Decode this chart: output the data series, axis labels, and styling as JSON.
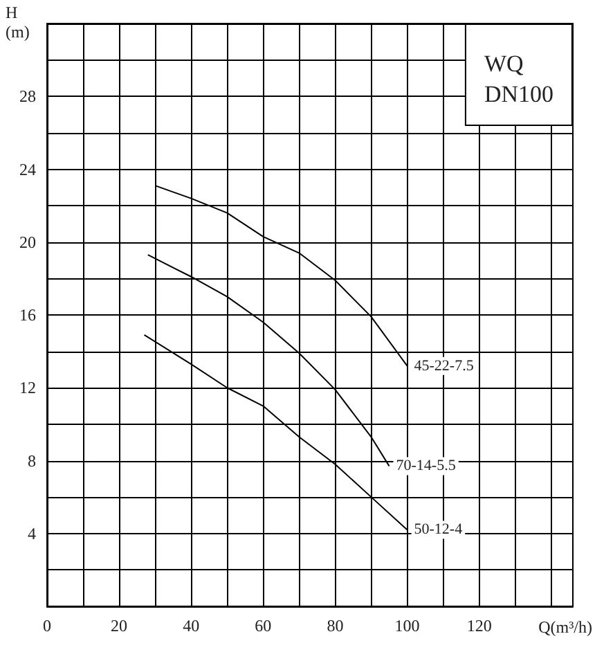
{
  "chart_data": {
    "type": "line",
    "title": "WQ DN100",
    "xlabel": "Q(m³/h)",
    "ylabel": "H (m)",
    "series": [
      {
        "name": "45-22-7.5",
        "color": "#000000",
        "x": [
          30,
          40,
          50,
          60,
          70,
          80,
          90,
          100
        ],
        "values": [
          23.1,
          22.4,
          21.6,
          20.3,
          19.4,
          17.9,
          15.9,
          13.2
        ]
      },
      {
        "name": "70-14-5.5",
        "color": "#000000",
        "x": [
          28,
          40,
          50,
          60,
          70,
          80,
          90,
          95
        ],
        "values": [
          19.3,
          18.1,
          17.0,
          15.6,
          13.9,
          11.9,
          9.3,
          7.7
        ]
      },
      {
        "name": "50-12-4",
        "color": "#000000",
        "x": [
          27,
          40,
          50,
          60,
          70,
          80,
          90,
          100
        ],
        "values": [
          14.9,
          13.3,
          12.0,
          11.0,
          9.3,
          7.8,
          6.0,
          4.2
        ]
      }
    ],
    "xlim": [
      0,
      146
    ],
    "ylim": [
      0,
      32
    ],
    "xticks": [
      0,
      {
        "value": 10,
        "label": null
      },
      20,
      {
        "value": 30,
        "label": null
      },
      40,
      {
        "value": 50,
        "label": null
      },
      60,
      {
        "value": 70,
        "label": null
      },
      80,
      {
        "value": 90,
        "label": null
      },
      100,
      {
        "value": 110,
        "label": null
      },
      120,
      {
        "value": 130,
        "label": null
      },
      {
        "value": 140,
        "label": null
      }
    ],
    "yticks": [
      {
        "value": 0,
        "label": null
      },
      {
        "value": 2,
        "label": null
      },
      4,
      {
        "value": 6,
        "label": null
      },
      8,
      {
        "value": 10,
        "label": null
      },
      12,
      {
        "value": 14,
        "label": null
      },
      16,
      {
        "value": 18,
        "label": null
      },
      20,
      {
        "value": 22,
        "label": null
      },
      24,
      {
        "value": 26,
        "label": null
      },
      28,
      {
        "value": 30,
        "label": null
      },
      {
        "value": 32,
        "label": null
      }
    ],
    "grid": true,
    "marker": "none",
    "line_style": "solid"
  }
}
